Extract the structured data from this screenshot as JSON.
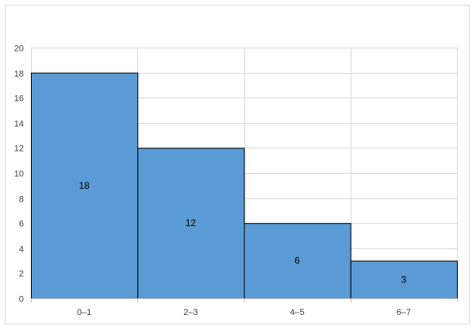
{
  "chart_data": {
    "type": "bar",
    "categories": [
      "0–1",
      "2–3",
      "4–5",
      "6–7"
    ],
    "values": [
      18,
      12,
      6,
      3
    ],
    "data_labels": [
      "18",
      "12",
      "6",
      "3"
    ],
    "title": "",
    "xlabel": "",
    "ylabel": "",
    "ylim": [
      0,
      20
    ],
    "yticks": [
      0,
      2,
      4,
      6,
      8,
      10,
      12,
      14,
      16,
      18,
      20
    ],
    "ytick_labels": [
      "0",
      "2",
      "4",
      "6",
      "8",
      "10",
      "12",
      "14",
      "16",
      "18",
      "20"
    ],
    "grid": true,
    "legend": "none",
    "bar_gap": 0,
    "colors": {
      "bar_fill": "#5b9bd5",
      "bar_stroke": "#000000",
      "grid": "#d9d9d9",
      "axis": "#bfbfbf"
    }
  }
}
